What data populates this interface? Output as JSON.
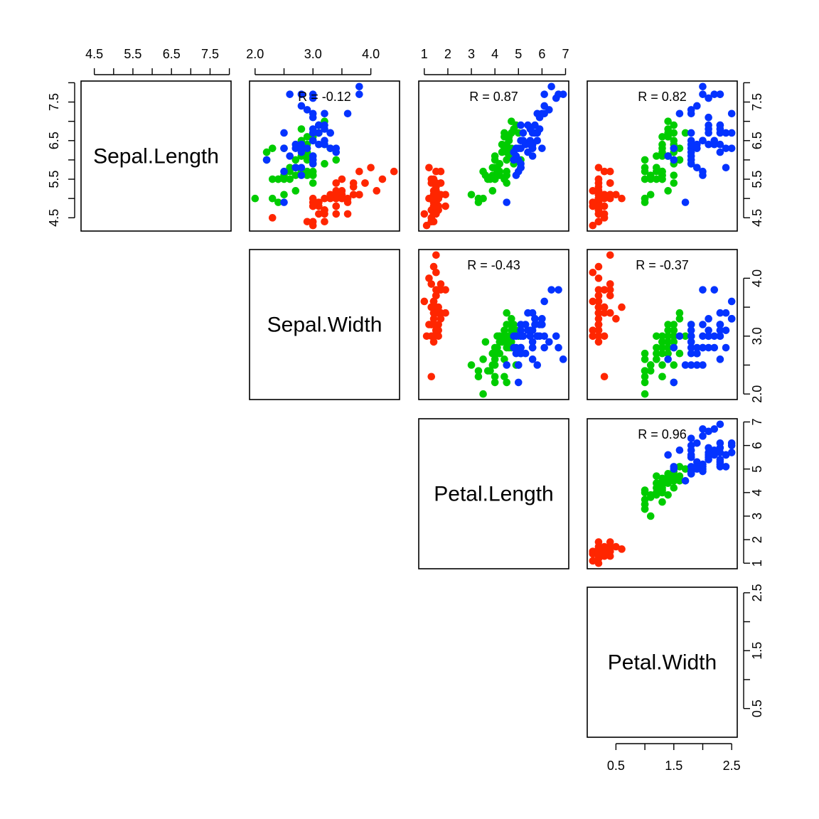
{
  "chart_data": {
    "type": "scatter",
    "title": "",
    "variables": [
      "Sepal.Length",
      "Sepal.Width",
      "Petal.Length",
      "Petal.Width"
    ],
    "ranges": {
      "Sepal.Length": [
        4.3,
        7.9
      ],
      "Sepal.Width": [
        2.0,
        4.4
      ],
      "Petal.Length": [
        1.0,
        6.9
      ],
      "Petal.Width": [
        0.1,
        2.5
      ]
    },
    "ticks": {
      "Sepal.Length": {
        "values": [
          4.5,
          5.0,
          5.5,
          6.0,
          6.5,
          7.0,
          7.5,
          8.0
        ],
        "labels": [
          "4.5",
          "",
          "5.5",
          "",
          "6.5",
          "",
          "7.5",
          ""
        ]
      },
      "Sepal.Width": {
        "values": [
          2.0,
          2.5,
          3.0,
          3.5,
          4.0
        ],
        "labels": [
          "2.0",
          "",
          "3.0",
          "",
          "4.0"
        ]
      },
      "Petal.Length": {
        "values": [
          1,
          2,
          3,
          4,
          5,
          6,
          7
        ],
        "labels": [
          "1",
          "2",
          "3",
          "4",
          "5",
          "6",
          "7"
        ]
      },
      "Petal.Width": {
        "values": [
          0.5,
          1.0,
          1.5,
          2.0,
          2.5
        ],
        "labels": [
          "0.5",
          "",
          "1.5",
          "",
          "2.5"
        ]
      }
    },
    "correlations": [
      {
        "row": 0,
        "col": 1,
        "label": "R = -0.12"
      },
      {
        "row": 0,
        "col": 2,
        "label": "R = 0.87"
      },
      {
        "row": 0,
        "col": 3,
        "label": "R = 0.82"
      },
      {
        "row": 1,
        "col": 2,
        "label": "R = -0.43"
      },
      {
        "row": 1,
        "col": 3,
        "label": "R = -0.37"
      },
      {
        "row": 2,
        "col": 3,
        "label": "R = 0.96"
      }
    ],
    "legend": "none",
    "grid": false,
    "series": [
      {
        "color": "#ff2600",
        "columns": [
          "Sepal.Length",
          "Sepal.Width",
          "Petal.Length",
          "Petal.Width"
        ],
        "points": [
          [
            5.1,
            3.5,
            1.4,
            0.2
          ],
          [
            4.9,
            3.0,
            1.4,
            0.2
          ],
          [
            4.7,
            3.2,
            1.3,
            0.2
          ],
          [
            4.6,
            3.1,
            1.5,
            0.2
          ],
          [
            5.0,
            3.6,
            1.4,
            0.2
          ],
          [
            5.4,
            3.9,
            1.7,
            0.4
          ],
          [
            4.6,
            3.4,
            1.4,
            0.3
          ],
          [
            5.0,
            3.4,
            1.5,
            0.2
          ],
          [
            4.4,
            2.9,
            1.4,
            0.2
          ],
          [
            4.9,
            3.1,
            1.5,
            0.1
          ],
          [
            5.4,
            3.7,
            1.5,
            0.2
          ],
          [
            4.8,
            3.4,
            1.6,
            0.2
          ],
          [
            4.8,
            3.0,
            1.4,
            0.1
          ],
          [
            4.3,
            3.0,
            1.1,
            0.1
          ],
          [
            5.8,
            4.0,
            1.2,
            0.2
          ],
          [
            5.7,
            4.4,
            1.5,
            0.4
          ],
          [
            5.4,
            3.9,
            1.3,
            0.4
          ],
          [
            5.1,
            3.5,
            1.4,
            0.3
          ],
          [
            5.7,
            3.8,
            1.7,
            0.3
          ],
          [
            5.1,
            3.8,
            1.5,
            0.3
          ],
          [
            5.4,
            3.4,
            1.7,
            0.2
          ],
          [
            5.1,
            3.7,
            1.5,
            0.4
          ],
          [
            4.6,
            3.6,
            1.0,
            0.2
          ],
          [
            5.1,
            3.3,
            1.7,
            0.5
          ],
          [
            4.8,
            3.4,
            1.9,
            0.2
          ],
          [
            5.0,
            3.0,
            1.6,
            0.2
          ],
          [
            5.0,
            3.4,
            1.6,
            0.4
          ],
          [
            5.2,
            3.5,
            1.5,
            0.2
          ],
          [
            5.2,
            3.4,
            1.4,
            0.2
          ],
          [
            4.7,
            3.2,
            1.6,
            0.2
          ],
          [
            4.8,
            3.1,
            1.6,
            0.2
          ],
          [
            5.4,
            3.4,
            1.5,
            0.4
          ],
          [
            5.2,
            4.1,
            1.5,
            0.1
          ],
          [
            5.5,
            4.2,
            1.4,
            0.2
          ],
          [
            4.9,
            3.1,
            1.5,
            0.2
          ],
          [
            5.0,
            3.2,
            1.2,
            0.2
          ],
          [
            5.5,
            3.5,
            1.3,
            0.2
          ],
          [
            4.9,
            3.6,
            1.4,
            0.1
          ],
          [
            4.4,
            3.0,
            1.3,
            0.2
          ],
          [
            5.1,
            3.4,
            1.5,
            0.2
          ],
          [
            5.0,
            3.5,
            1.3,
            0.3
          ],
          [
            4.5,
            2.3,
            1.3,
            0.3
          ],
          [
            4.4,
            3.2,
            1.3,
            0.2
          ],
          [
            5.0,
            3.5,
            1.6,
            0.6
          ],
          [
            5.1,
            3.8,
            1.9,
            0.4
          ],
          [
            4.8,
            3.0,
            1.4,
            0.3
          ],
          [
            5.1,
            3.8,
            1.6,
            0.2
          ],
          [
            4.6,
            3.2,
            1.4,
            0.2
          ],
          [
            5.3,
            3.7,
            1.5,
            0.2
          ],
          [
            5.0,
            3.3,
            1.4,
            0.2
          ]
        ]
      },
      {
        "color": "#00cc00",
        "columns": [
          "Sepal.Length",
          "Sepal.Width",
          "Petal.Length",
          "Petal.Width"
        ],
        "points": [
          [
            7.0,
            3.2,
            4.7,
            1.4
          ],
          [
            6.4,
            3.2,
            4.5,
            1.5
          ],
          [
            6.9,
            3.1,
            4.9,
            1.5
          ],
          [
            5.5,
            2.3,
            4.0,
            1.3
          ],
          [
            6.5,
            2.8,
            4.6,
            1.5
          ],
          [
            5.7,
            2.8,
            4.5,
            1.3
          ],
          [
            6.3,
            3.3,
            4.7,
            1.6
          ],
          [
            4.9,
            2.4,
            3.3,
            1.0
          ],
          [
            6.6,
            2.9,
            4.6,
            1.3
          ],
          [
            5.2,
            2.7,
            3.9,
            1.4
          ],
          [
            5.0,
            2.0,
            3.5,
            1.0
          ],
          [
            5.9,
            3.0,
            4.2,
            1.5
          ],
          [
            6.0,
            2.2,
            4.0,
            1.0
          ],
          [
            6.1,
            2.9,
            4.7,
            1.4
          ],
          [
            5.6,
            2.9,
            3.6,
            1.3
          ],
          [
            6.7,
            3.1,
            4.4,
            1.4
          ],
          [
            5.6,
            3.0,
            4.5,
            1.5
          ],
          [
            5.8,
            2.7,
            4.1,
            1.0
          ],
          [
            6.2,
            2.2,
            4.5,
            1.5
          ],
          [
            5.6,
            2.5,
            3.9,
            1.1
          ],
          [
            5.9,
            3.2,
            4.8,
            1.8
          ],
          [
            6.1,
            2.8,
            4.0,
            1.3
          ],
          [
            6.3,
            2.5,
            4.9,
            1.5
          ],
          [
            6.1,
            2.8,
            4.7,
            1.2
          ],
          [
            6.4,
            2.9,
            4.3,
            1.3
          ],
          [
            6.6,
            3.0,
            4.4,
            1.4
          ],
          [
            6.8,
            2.8,
            4.8,
            1.4
          ],
          [
            6.7,
            3.0,
            5.0,
            1.7
          ],
          [
            6.0,
            2.9,
            4.5,
            1.5
          ],
          [
            5.7,
            2.6,
            3.5,
            1.0
          ],
          [
            5.5,
            2.4,
            3.8,
            1.1
          ],
          [
            5.5,
            2.4,
            3.7,
            1.0
          ],
          [
            5.8,
            2.7,
            3.9,
            1.2
          ],
          [
            6.0,
            2.7,
            5.1,
            1.6
          ],
          [
            5.4,
            3.0,
            4.5,
            1.5
          ],
          [
            6.0,
            3.4,
            4.5,
            1.6
          ],
          [
            6.7,
            3.1,
            4.7,
            1.5
          ],
          [
            6.3,
            2.3,
            4.4,
            1.3
          ],
          [
            5.6,
            3.0,
            4.1,
            1.3
          ],
          [
            5.5,
            2.5,
            4.0,
            1.3
          ],
          [
            5.5,
            2.6,
            4.4,
            1.2
          ],
          [
            6.1,
            3.0,
            4.6,
            1.4
          ],
          [
            5.8,
            2.6,
            4.0,
            1.2
          ],
          [
            5.0,
            2.3,
            3.3,
            1.0
          ],
          [
            5.6,
            2.7,
            4.2,
            1.3
          ],
          [
            5.7,
            3.0,
            4.2,
            1.2
          ],
          [
            5.7,
            2.9,
            4.2,
            1.3
          ],
          [
            6.2,
            2.9,
            4.3,
            1.3
          ],
          [
            5.1,
            2.5,
            3.0,
            1.1
          ],
          [
            5.7,
            2.8,
            4.1,
            1.3
          ]
        ]
      },
      {
        "color": "#0433ff",
        "columns": [
          "Sepal.Length",
          "Sepal.Width",
          "Petal.Length",
          "Petal.Width"
        ],
        "points": [
          [
            6.3,
            3.3,
            6.0,
            2.5
          ],
          [
            5.8,
            2.7,
            5.1,
            1.9
          ],
          [
            7.1,
            3.0,
            5.9,
            2.1
          ],
          [
            6.3,
            2.9,
            5.6,
            1.8
          ],
          [
            6.5,
            3.0,
            5.8,
            2.2
          ],
          [
            7.6,
            3.0,
            6.6,
            2.1
          ],
          [
            4.9,
            2.5,
            4.5,
            1.7
          ],
          [
            7.3,
            2.9,
            6.3,
            1.8
          ],
          [
            6.7,
            2.5,
            5.8,
            1.8
          ],
          [
            7.2,
            3.6,
            6.1,
            2.5
          ],
          [
            6.5,
            3.2,
            5.1,
            2.0
          ],
          [
            6.4,
            2.7,
            5.3,
            1.9
          ],
          [
            6.8,
            3.0,
            5.5,
            2.1
          ],
          [
            5.7,
            2.5,
            5.0,
            2.0
          ],
          [
            5.8,
            2.8,
            5.1,
            2.4
          ],
          [
            6.4,
            3.2,
            5.3,
            2.3
          ],
          [
            6.5,
            3.0,
            5.5,
            1.8
          ],
          [
            7.7,
            3.8,
            6.7,
            2.2
          ],
          [
            7.7,
            2.6,
            6.9,
            2.3
          ],
          [
            6.0,
            2.2,
            5.0,
            1.5
          ],
          [
            6.9,
            3.2,
            5.7,
            2.3
          ],
          [
            5.6,
            2.8,
            4.9,
            2.0
          ],
          [
            7.7,
            2.8,
            6.7,
            2.0
          ],
          [
            6.3,
            2.7,
            4.9,
            1.8
          ],
          [
            6.7,
            3.3,
            5.7,
            2.1
          ],
          [
            7.2,
            3.2,
            6.0,
            1.8
          ],
          [
            6.2,
            2.8,
            4.8,
            1.8
          ],
          [
            6.1,
            3.0,
            4.9,
            1.8
          ],
          [
            6.4,
            2.8,
            5.6,
            2.1
          ],
          [
            7.2,
            3.0,
            5.8,
            1.6
          ],
          [
            7.4,
            2.8,
            6.1,
            1.9
          ],
          [
            7.9,
            3.8,
            6.4,
            2.0
          ],
          [
            6.4,
            2.8,
            5.6,
            2.2
          ],
          [
            6.3,
            2.8,
            5.1,
            1.5
          ],
          [
            6.1,
            2.6,
            5.6,
            1.4
          ],
          [
            7.7,
            3.0,
            6.1,
            2.3
          ],
          [
            6.3,
            3.4,
            5.6,
            2.4
          ],
          [
            6.4,
            3.1,
            5.5,
            1.8
          ],
          [
            6.0,
            3.0,
            4.8,
            1.8
          ],
          [
            6.9,
            3.1,
            5.4,
            2.1
          ],
          [
            6.7,
            3.1,
            5.6,
            2.4
          ],
          [
            6.9,
            3.1,
            5.1,
            2.3
          ],
          [
            5.8,
            2.7,
            5.1,
            1.9
          ],
          [
            6.8,
            3.2,
            5.9,
            2.3
          ],
          [
            6.7,
            3.3,
            5.7,
            2.5
          ],
          [
            6.7,
            3.0,
            5.2,
            2.3
          ],
          [
            6.3,
            2.5,
            5.0,
            1.9
          ],
          [
            6.5,
            3.0,
            5.2,
            2.0
          ],
          [
            6.2,
            3.4,
            5.4,
            2.3
          ],
          [
            5.9,
            3.0,
            5.1,
            1.8
          ]
        ]
      }
    ]
  }
}
